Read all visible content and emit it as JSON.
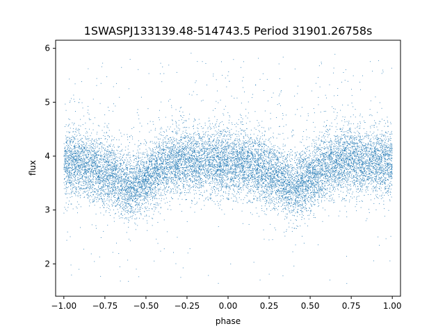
{
  "chart_data": {
    "type": "scatter",
    "title": "1SWASPJ133139.48-514743.5 Period 31901.26758s",
    "xlabel": "phase",
    "ylabel": "flux",
    "xlim": [
      -1.05,
      1.05
    ],
    "ylim": [
      1.4,
      6.15
    ],
    "xticks": [
      -1.0,
      -0.75,
      -0.5,
      -0.25,
      0.0,
      0.25,
      0.5,
      0.75,
      1.0
    ],
    "xtick_labels": [
      "−1.00",
      "−0.75",
      "−0.50",
      "−0.25",
      "0.00",
      "0.25",
      "0.50",
      "0.75",
      "1.00"
    ],
    "yticks": [
      2,
      3,
      4,
      5,
      6
    ],
    "ytick_labels": [
      "2",
      "3",
      "4",
      "5",
      "6"
    ],
    "grid": false,
    "marker_color": "#1f77b4",
    "series": [
      {
        "name": "",
        "trend_x": [
          -1.0,
          -0.9,
          -0.8,
          -0.7,
          -0.6,
          -0.5,
          -0.4,
          -0.3,
          -0.2,
          -0.1,
          0.0,
          0.1,
          0.2,
          0.3,
          0.4,
          0.5,
          0.6,
          0.7,
          0.8,
          0.9,
          1.0
        ],
        "trend_y": [
          3.85,
          3.85,
          3.75,
          3.6,
          3.4,
          3.55,
          3.8,
          3.9,
          3.9,
          3.88,
          3.85,
          3.85,
          3.75,
          3.6,
          3.4,
          3.55,
          3.8,
          3.9,
          3.9,
          3.88,
          3.85
        ],
        "scatter_sigma": 0.3,
        "outlier_range": [
          1.6,
          5.95
        ],
        "n_points": 14000
      }
    ]
  }
}
